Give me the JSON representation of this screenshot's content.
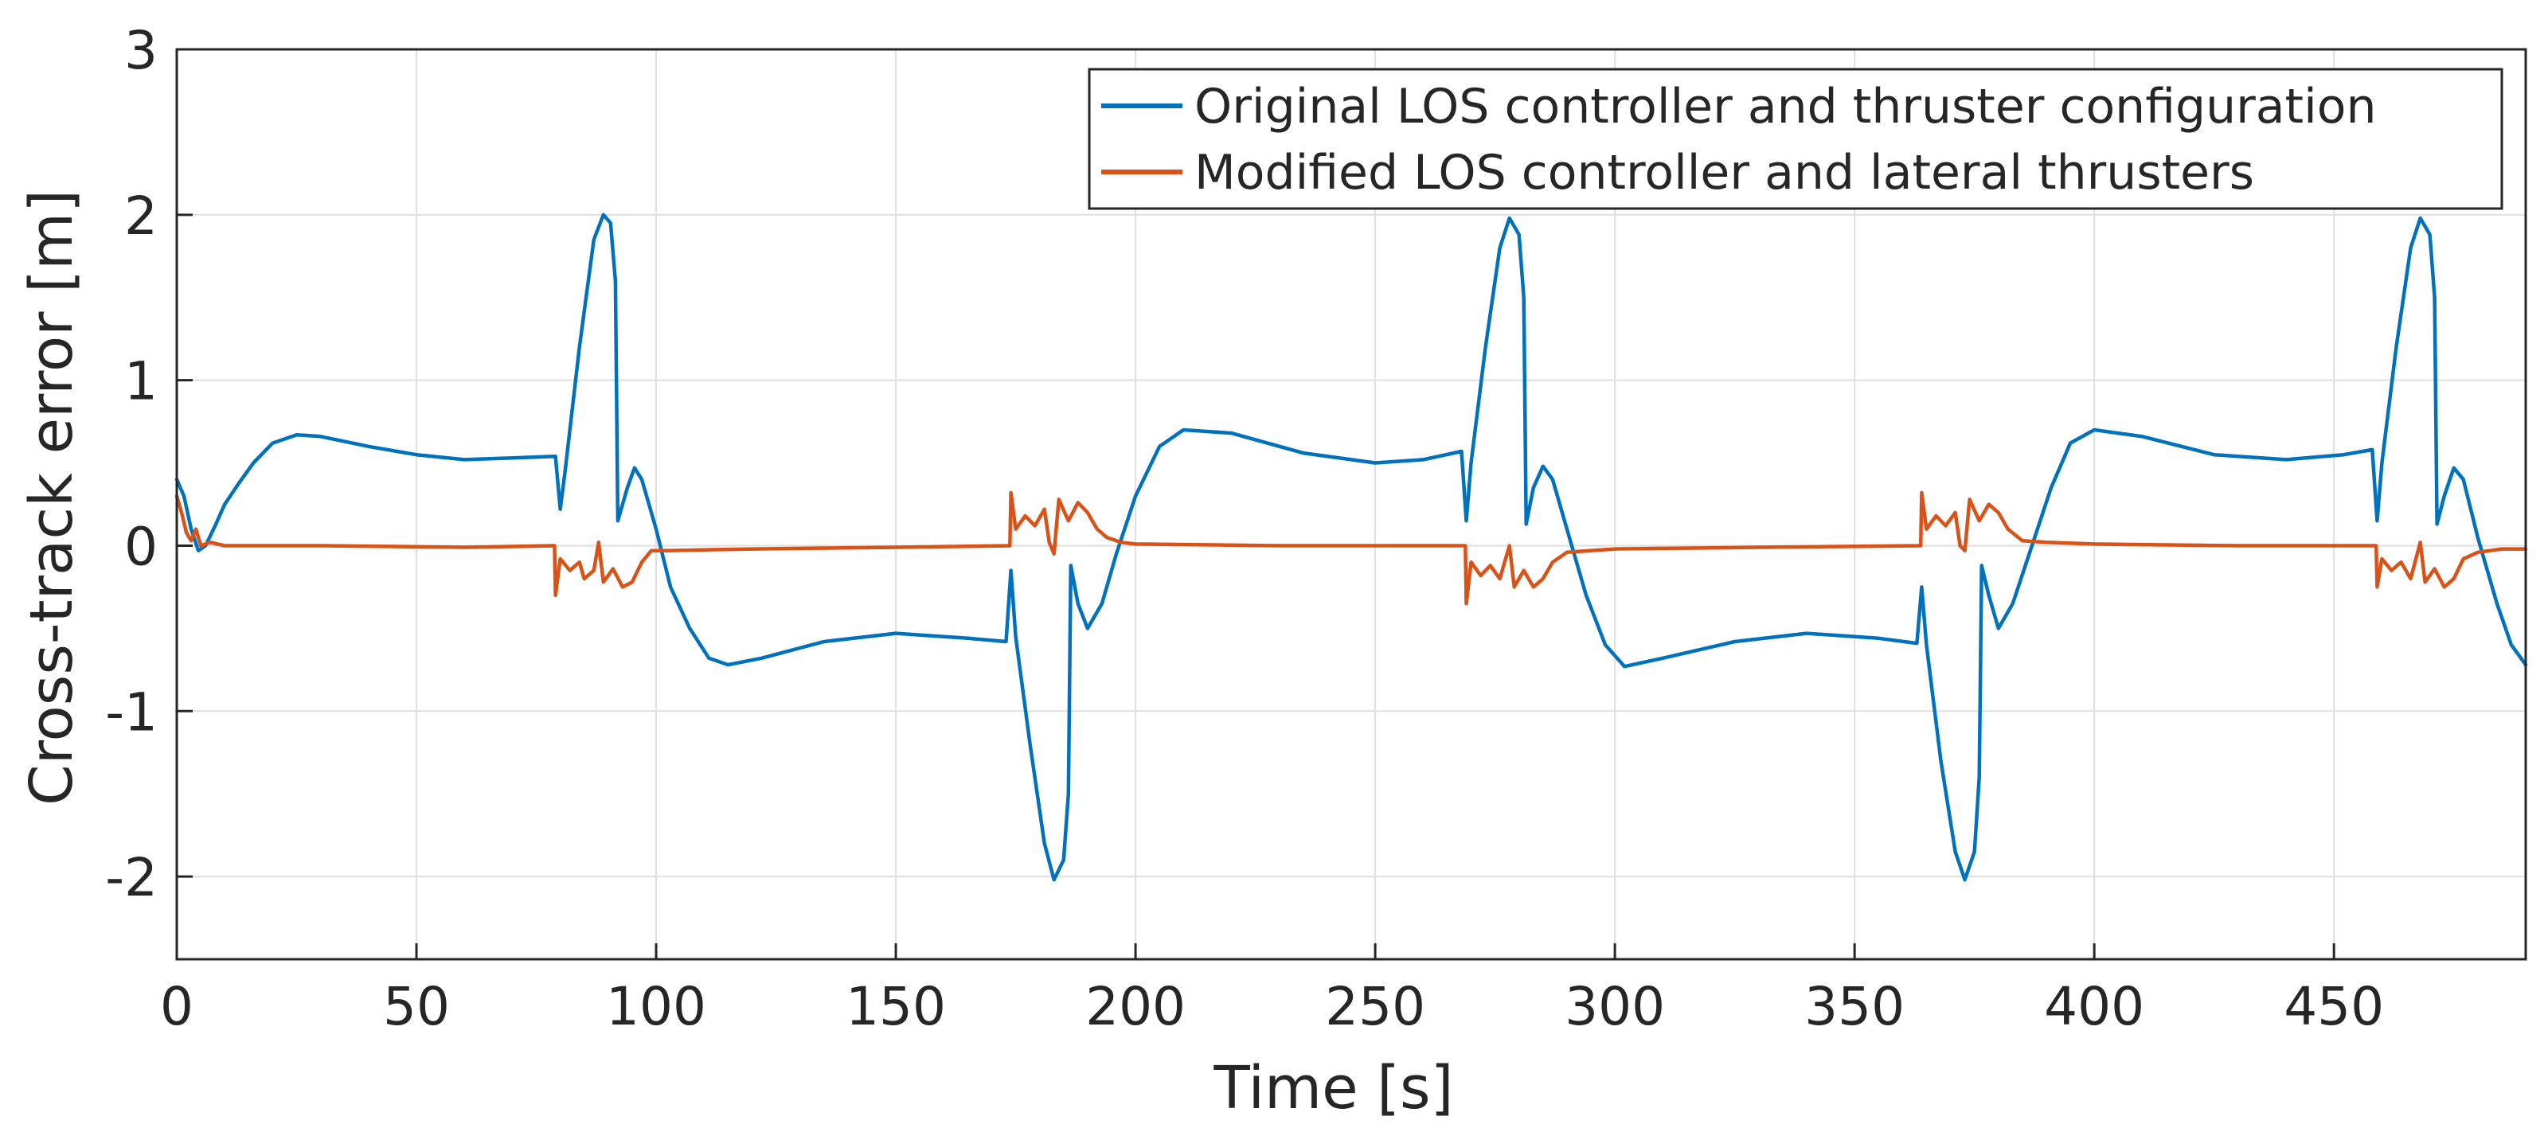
{
  "chart_data": {
    "type": "line",
    "title": "",
    "xlabel": "Time [s]",
    "ylabel": "Cross-track error [m]",
    "xlim": [
      0,
      490
    ],
    "ylim": [
      -2.5,
      3
    ],
    "xticks": [
      0,
      50,
      100,
      150,
      200,
      250,
      300,
      350,
      400,
      450
    ],
    "xtick_labels": [
      "0",
      "50",
      "100",
      "150",
      "200",
      "250",
      "300",
      "350",
      "400",
      "450"
    ],
    "yticks": [
      -2,
      -1,
      0,
      1,
      2,
      3
    ],
    "ytick_labels": [
      "-2",
      "-1",
      "0",
      "1",
      "2",
      "3"
    ],
    "grid": true,
    "legend_position": "top-right",
    "series": [
      {
        "name": "Original LOS controller and thruster configuration",
        "color": "#0072BD",
        "points": [
          [
            0,
            0.4
          ],
          [
            1.5,
            0.3
          ],
          [
            3,
            0.1
          ],
          [
            4.5,
            -0.03
          ],
          [
            6,
            0.0
          ],
          [
            8,
            0.12
          ],
          [
            10,
            0.25
          ],
          [
            13,
            0.38
          ],
          [
            16,
            0.5
          ],
          [
            20,
            0.62
          ],
          [
            25,
            0.67
          ],
          [
            30,
            0.66
          ],
          [
            40,
            0.6
          ],
          [
            50,
            0.55
          ],
          [
            60,
            0.52
          ],
          [
            70,
            0.53
          ],
          [
            79,
            0.54
          ],
          [
            80,
            0.22
          ],
          [
            81,
            0.45
          ],
          [
            84,
            1.2
          ],
          [
            87,
            1.85
          ],
          [
            89,
            2.0
          ],
          [
            90.5,
            1.95
          ],
          [
            91.5,
            1.6
          ],
          [
            92,
            0.15
          ],
          [
            94,
            0.35
          ],
          [
            95.5,
            0.47
          ],
          [
            97,
            0.4
          ],
          [
            100,
            0.1
          ],
          [
            103,
            -0.25
          ],
          [
            107,
            -0.5
          ],
          [
            111,
            -0.68
          ],
          [
            115,
            -0.72
          ],
          [
            122,
            -0.68
          ],
          [
            135,
            -0.58
          ],
          [
            150,
            -0.53
          ],
          [
            165,
            -0.56
          ],
          [
            173,
            -0.58
          ],
          [
            174,
            -0.15
          ],
          [
            175,
            -0.55
          ],
          [
            178,
            -1.2
          ],
          [
            181,
            -1.8
          ],
          [
            183,
            -2.02
          ],
          [
            185,
            -1.9
          ],
          [
            186,
            -1.5
          ],
          [
            186.5,
            -0.12
          ],
          [
            188,
            -0.35
          ],
          [
            190,
            -0.5
          ],
          [
            193,
            -0.35
          ],
          [
            196,
            -0.05
          ],
          [
            200,
            0.3
          ],
          [
            205,
            0.6
          ],
          [
            210,
            0.7
          ],
          [
            220,
            0.68
          ],
          [
            235,
            0.56
          ],
          [
            250,
            0.5
          ],
          [
            260,
            0.52
          ],
          [
            268,
            0.57
          ],
          [
            269,
            0.15
          ],
          [
            270,
            0.5
          ],
          [
            273,
            1.2
          ],
          [
            276,
            1.8
          ],
          [
            278,
            1.98
          ],
          [
            280,
            1.88
          ],
          [
            281,
            1.5
          ],
          [
            281.5,
            0.13
          ],
          [
            283,
            0.35
          ],
          [
            285,
            0.48
          ],
          [
            287,
            0.4
          ],
          [
            290,
            0.1
          ],
          [
            294,
            -0.3
          ],
          [
            298,
            -0.6
          ],
          [
            302,
            -0.73
          ],
          [
            310,
            -0.68
          ],
          [
            325,
            -0.58
          ],
          [
            340,
            -0.53
          ],
          [
            355,
            -0.56
          ],
          [
            363,
            -0.59
          ],
          [
            364,
            -0.25
          ],
          [
            365,
            -0.6
          ],
          [
            368,
            -1.3
          ],
          [
            371,
            -1.85
          ],
          [
            373,
            -2.02
          ],
          [
            375,
            -1.85
          ],
          [
            376,
            -1.4
          ],
          [
            376.5,
            -0.12
          ],
          [
            378,
            -0.3
          ],
          [
            380,
            -0.5
          ],
          [
            383,
            -0.35
          ],
          [
            387,
            0.0
          ],
          [
            391,
            0.35
          ],
          [
            395,
            0.62
          ],
          [
            400,
            0.7
          ],
          [
            410,
            0.66
          ],
          [
            425,
            0.55
          ],
          [
            440,
            0.52
          ],
          [
            452,
            0.55
          ],
          [
            458,
            0.58
          ],
          [
            459,
            0.15
          ],
          [
            460,
            0.5
          ],
          [
            463,
            1.2
          ],
          [
            466,
            1.8
          ],
          [
            468,
            1.98
          ],
          [
            470,
            1.88
          ],
          [
            471,
            1.5
          ],
          [
            471.5,
            0.13
          ],
          [
            473,
            0.3
          ],
          [
            475,
            0.47
          ],
          [
            477,
            0.4
          ],
          [
            480,
            0.05
          ],
          [
            484,
            -0.35
          ],
          [
            487,
            -0.6
          ],
          [
            490,
            -0.72
          ]
        ]
      },
      {
        "name": "Modified LOS controller and lateral thrusters",
        "color": "#D95319",
        "points": [
          [
            0,
            0.3
          ],
          [
            1,
            0.2
          ],
          [
            2,
            0.08
          ],
          [
            3,
            0.03
          ],
          [
            4,
            0.1
          ],
          [
            5,
            0.0
          ],
          [
            7,
            0.02
          ],
          [
            10,
            0.0
          ],
          [
            30,
            0.0
          ],
          [
            60,
            -0.01
          ],
          [
            78.8,
            0.0
          ],
          [
            79,
            -0.3
          ],
          [
            80,
            -0.08
          ],
          [
            82,
            -0.15
          ],
          [
            84,
            -0.1
          ],
          [
            85,
            -0.2
          ],
          [
            87,
            -0.15
          ],
          [
            88,
            0.02
          ],
          [
            89,
            -0.22
          ],
          [
            91,
            -0.14
          ],
          [
            93,
            -0.25
          ],
          [
            95,
            -0.22
          ],
          [
            97,
            -0.1
          ],
          [
            99,
            -0.03
          ],
          [
            102,
            -0.03
          ],
          [
            120,
            -0.02
          ],
          [
            150,
            -0.01
          ],
          [
            173.8,
            0.0
          ],
          [
            174,
            0.32
          ],
          [
            175,
            0.1
          ],
          [
            177,
            0.18
          ],
          [
            179,
            0.12
          ],
          [
            181,
            0.22
          ],
          [
            182,
            0.02
          ],
          [
            183,
            -0.05
          ],
          [
            184,
            0.28
          ],
          [
            186,
            0.15
          ],
          [
            188,
            0.26
          ],
          [
            190,
            0.2
          ],
          [
            192,
            0.1
          ],
          [
            194,
            0.05
          ],
          [
            197,
            0.02
          ],
          [
            200,
            0.01
          ],
          [
            230,
            0.0
          ],
          [
            268.8,
            0.0
          ],
          [
            269,
            -0.35
          ],
          [
            270,
            -0.1
          ],
          [
            272,
            -0.18
          ],
          [
            274,
            -0.12
          ],
          [
            276,
            -0.2
          ],
          [
            278,
            0.0
          ],
          [
            279,
            -0.25
          ],
          [
            281,
            -0.15
          ],
          [
            283,
            -0.25
          ],
          [
            285,
            -0.2
          ],
          [
            287,
            -0.1
          ],
          [
            290,
            -0.04
          ],
          [
            300,
            -0.02
          ],
          [
            330,
            -0.01
          ],
          [
            363.8,
            0.0
          ],
          [
            364,
            0.32
          ],
          [
            365,
            0.1
          ],
          [
            367,
            0.18
          ],
          [
            369,
            0.12
          ],
          [
            371,
            0.2
          ],
          [
            372,
            0.0
          ],
          [
            373,
            -0.03
          ],
          [
            374,
            0.28
          ],
          [
            376,
            0.15
          ],
          [
            378,
            0.25
          ],
          [
            380,
            0.2
          ],
          [
            382,
            0.1
          ],
          [
            385,
            0.03
          ],
          [
            390,
            0.02
          ],
          [
            400,
            0.01
          ],
          [
            430,
            0.0
          ],
          [
            458.8,
            0.0
          ],
          [
            459,
            -0.25
          ],
          [
            460,
            -0.08
          ],
          [
            462,
            -0.15
          ],
          [
            464,
            -0.1
          ],
          [
            466,
            -0.2
          ],
          [
            468,
            0.02
          ],
          [
            469,
            -0.22
          ],
          [
            471,
            -0.14
          ],
          [
            473,
            -0.25
          ],
          [
            475,
            -0.2
          ],
          [
            477,
            -0.08
          ],
          [
            480,
            -0.04
          ],
          [
            485,
            -0.02
          ],
          [
            490,
            -0.02
          ]
        ]
      }
    ]
  }
}
